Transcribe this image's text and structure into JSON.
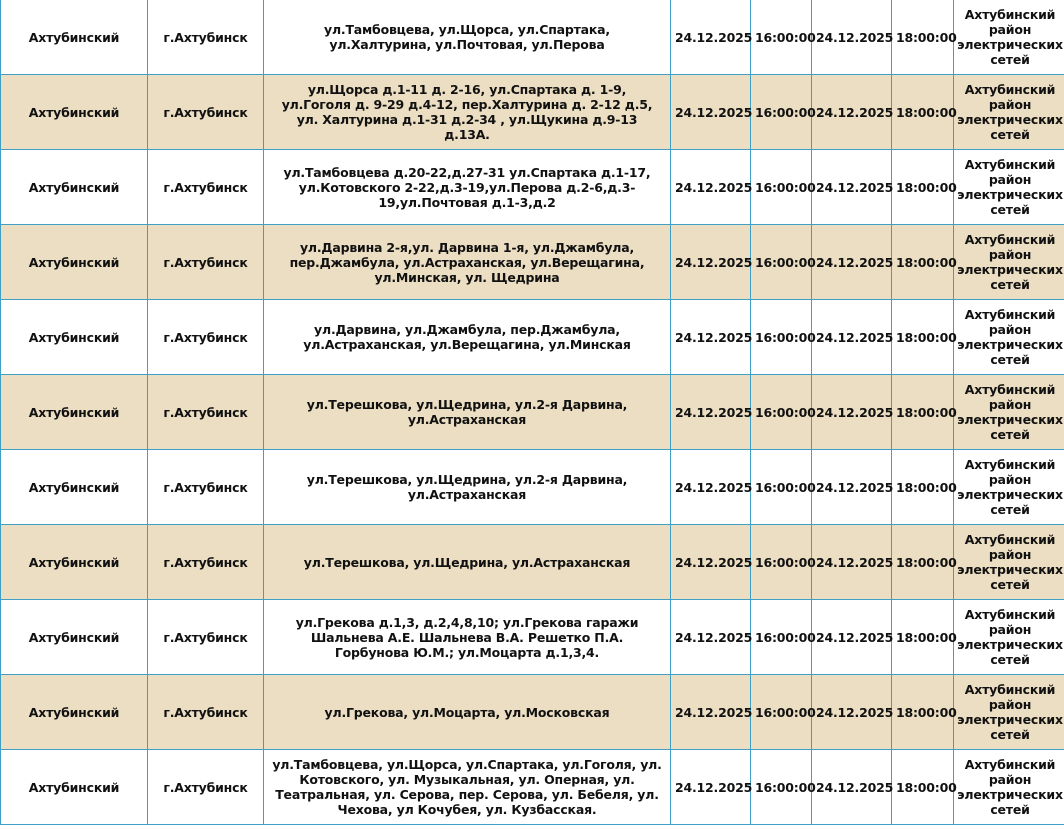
{
  "colors": {
    "row_alt": "#ecdec2",
    "border": "#3f9fc4"
  },
  "rows": [
    {
      "district": "Ахтубинский",
      "city": "г.Ахтубинск",
      "addresses": "ул.Тамбовцева, ул.Щорса, ул.Спартака, ул.Халтурина, ул.Почтовая, ул.Перова",
      "start_date": "24.12.2025",
      "start_time": "16:00:00",
      "end_date": "24.12.2025",
      "end_time": "18:00:00",
      "org": "Ахтубинский район электрических сетей"
    },
    {
      "district": "Ахтубинский",
      "city": "г.Ахтубинск",
      "addresses": "ул.Щорса д.1-11 д. 2-16, ул.Спартака д. 1-9, ул.Гоголя д. 9-29 д.4-12, пер.Халтурина д. 2-12 д.5, ул. Халтурина д.1-31 д.2-34 , ул.Щукина д.9-13 д.13А.",
      "start_date": "24.12.2025",
      "start_time": "16:00:00",
      "end_date": "24.12.2025",
      "end_time": "18:00:00",
      "org": "Ахтубинский район электрических сетей"
    },
    {
      "district": "Ахтубинский",
      "city": "г.Ахтубинск",
      "addresses": "ул.Тамбовцева д.20-22,д.27-31 ул.Спартака д.1-17, ул.Котовского 2-22,д.3-19,ул.Перова д.2-6,д.3-19,ул.Почтовая д.1-3,д.2",
      "start_date": "24.12.2025",
      "start_time": "16:00:00",
      "end_date": "24.12.2025",
      "end_time": "18:00:00",
      "org": "Ахтубинский район электрических сетей"
    },
    {
      "district": "Ахтубинский",
      "city": "г.Ахтубинск",
      "addresses": "ул.Дарвина 2-я,ул. Дарвина 1-я, ул.Джамбула, пер.Джамбула, ул.Астраханская, ул.Верещагина, ул.Минская, ул. Щедрина",
      "start_date": "24.12.2025",
      "start_time": "16:00:00",
      "end_date": "24.12.2025",
      "end_time": "18:00:00",
      "org": "Ахтубинский район электрических сетей"
    },
    {
      "district": "Ахтубинский",
      "city": "г.Ахтубинск",
      "addresses": "ул.Дарвина, ул.Джамбула, пер.Джамбула, ул.Астраханская, ул.Верещагина, ул.Минская",
      "start_date": "24.12.2025",
      "start_time": "16:00:00",
      "end_date": "24.12.2025",
      "end_time": "18:00:00",
      "org": "Ахтубинский район электрических сетей"
    },
    {
      "district": "Ахтубинский",
      "city": "г.Ахтубинск",
      "addresses": "ул.Терешкова, ул.Щедрина, ул.2-я Дарвина, ул.Астраханская",
      "start_date": "24.12.2025",
      "start_time": "16:00:00",
      "end_date": "24.12.2025",
      "end_time": "18:00:00",
      "org": "Ахтубинский район электрических сетей"
    },
    {
      "district": "Ахтубинский",
      "city": "г.Ахтубинск",
      "addresses": "ул.Терешкова, ул.Щедрина, ул.2-я Дарвина, ул.Астраханская",
      "start_date": "24.12.2025",
      "start_time": "16:00:00",
      "end_date": "24.12.2025",
      "end_time": "18:00:00",
      "org": "Ахтубинский район электрических сетей"
    },
    {
      "district": "Ахтубинский",
      "city": "г.Ахтубинск",
      "addresses": "ул.Терешкова, ул.Щедрина, ул.Астраханская",
      "start_date": "24.12.2025",
      "start_time": "16:00:00",
      "end_date": "24.12.2025",
      "end_time": "18:00:00",
      "org": "Ахтубинский район электрических сетей"
    },
    {
      "district": "Ахтубинский",
      "city": "г.Ахтубинск",
      "addresses": "ул.Грекова д.1,3, д.2,4,8,10; ул.Грекова гаражи Шальнева А.Е. Шальнева В.А. Решетко П.А. Горбунова Ю.М.; ул.Моцарта д.1,3,4.",
      "start_date": "24.12.2025",
      "start_time": "16:00:00",
      "end_date": "24.12.2025",
      "end_time": "18:00:00",
      "org": "Ахтубинский район электрических сетей"
    },
    {
      "district": "Ахтубинский",
      "city": "г.Ахтубинск",
      "addresses": "ул.Грекова, ул.Моцарта, ул.Московская",
      "start_date": "24.12.2025",
      "start_time": "16:00:00",
      "end_date": "24.12.2025",
      "end_time": "18:00:00",
      "org": "Ахтубинский район электрических сетей"
    },
    {
      "district": "Ахтубинский",
      "city": "г.Ахтубинск",
      "addresses": "ул.Тамбовцева, ул.Щорса, ул.Спартака, ул.Гоголя, ул. Котовского, ул. Музыкальная, ул. Оперная, ул. Театральная, ул. Серова, пер. Серова, ул. Бебеля, ул. Чехова, ул Кочубея, ул. Кузбасская.",
      "start_date": "24.12.2025",
      "start_time": "16:00:00",
      "end_date": "24.12.2025",
      "end_time": "18:00:00",
      "org": "Ахтубинский район электрических сетей"
    }
  ]
}
